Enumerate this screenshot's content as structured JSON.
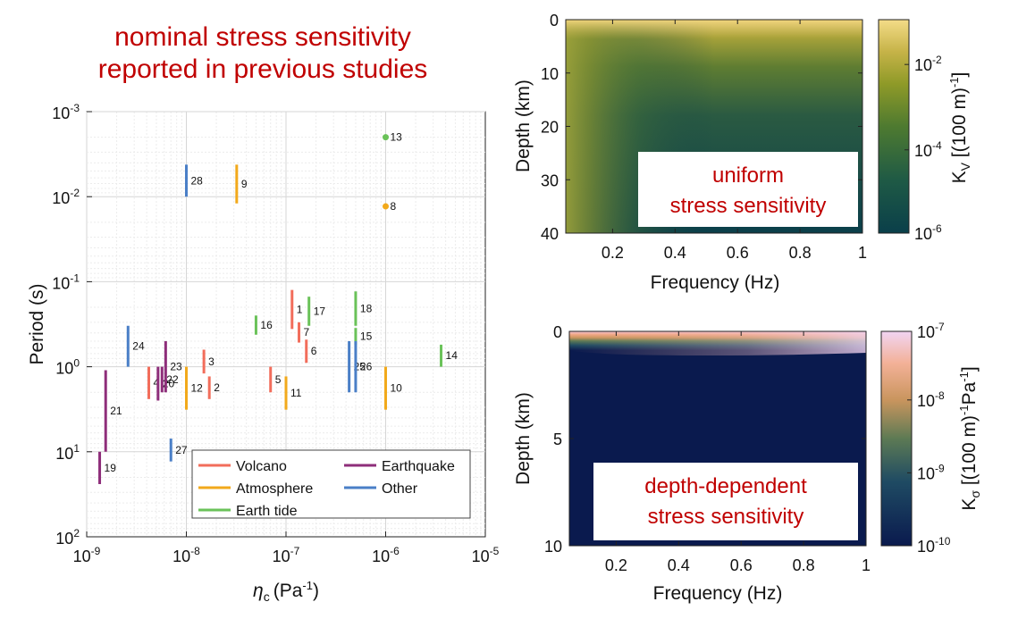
{
  "figure_title": [
    "nominal stress sensitivity",
    "reported in previous studies"
  ],
  "chart_data": [
    {
      "type": "scatter",
      "xlabel": "η_c (Pa⁻¹)",
      "xlabel_main": "η",
      "xlabel_sub": "c",
      "xlabel_unit": "(Pa",
      "xlabel_unit_exp": "-1",
      "xlabel_close": ")",
      "ylabel": "Period (s)",
      "xscale": "log",
      "yscale": "log",
      "y_reversed": true,
      "xlim": [
        1e-09,
        1e-05
      ],
      "ylim": [
        0.001,
        100
      ],
      "xticks": [
        {
          "base": "10",
          "exp": "-9"
        },
        {
          "base": "10",
          "exp": "-8"
        },
        {
          "base": "10",
          "exp": "-7"
        },
        {
          "base": "10",
          "exp": "-6"
        },
        {
          "base": "10",
          "exp": "-5"
        }
      ],
      "yticks": [
        {
          "base": "10",
          "exp": "-3"
        },
        {
          "base": "10",
          "exp": "-2"
        },
        {
          "base": "10",
          "exp": "-1"
        },
        {
          "base": "10",
          "exp": "0"
        },
        {
          "base": "10",
          "exp": "1"
        },
        {
          "base": "10",
          "exp": "2"
        }
      ],
      "grid": true,
      "legend": {
        "placement": "bottom-right",
        "entries": [
          {
            "name": "Volcano",
            "color": "#f26d5b"
          },
          {
            "name": "Earthquake",
            "color": "#8e2e7a"
          },
          {
            "name": "Atmosphere",
            "color": "#f2a91b"
          },
          {
            "name": "Other",
            "color": "#4a7fc7"
          },
          {
            "name": "Earth tide",
            "color": "#6ac259"
          }
        ]
      },
      "colors": {
        "Volcano": "#f26d5b",
        "Atmosphere": "#f2a91b",
        "Earth tide": "#6ac259",
        "Earthquake": "#8e2e7a",
        "Other": "#4a7fc7"
      },
      "segments": [
        {
          "label": "1",
          "category": "Volcano",
          "x": 1.15e-07,
          "period": [
            0.125,
            0.36
          ]
        },
        {
          "label": "2",
          "category": "Volcano",
          "x": 1.7e-08,
          "period": [
            1.3,
            2.4
          ]
        },
        {
          "label": "3",
          "category": "Volcano",
          "x": 1.5e-08,
          "period": [
            0.63,
            1.2
          ]
        },
        {
          "label": "4",
          "category": "Volcano",
          "x": 4.2e-09,
          "period": [
            1.0,
            2.4
          ]
        },
        {
          "label": "5",
          "category": "Volcano",
          "x": 7e-08,
          "period": [
            1.0,
            2.0
          ]
        },
        {
          "label": "6",
          "category": "Volcano",
          "x": 1.6e-07,
          "period": [
            0.48,
            0.9
          ]
        },
        {
          "label": "7",
          "category": "Volcano",
          "x": 1.35e-07,
          "period": [
            0.3,
            0.52
          ]
        },
        {
          "label": "8",
          "category": "Atmosphere",
          "x": 1e-06,
          "period": [
            0.013,
            0.013
          ],
          "point": true
        },
        {
          "label": "9",
          "category": "Atmosphere",
          "x": 3.2e-08,
          "period": [
            0.0042,
            0.012
          ]
        },
        {
          "label": "10",
          "category": "Atmosphere",
          "x": 1e-06,
          "period": [
            1.0,
            3.2
          ]
        },
        {
          "label": "11",
          "category": "Atmosphere",
          "x": 1e-07,
          "period": [
            1.3,
            3.2
          ]
        },
        {
          "label": "12",
          "category": "Atmosphere",
          "x": 1e-08,
          "period": [
            1.0,
            3.2
          ]
        },
        {
          "label": "13",
          "category": "Earth tide",
          "x": 1e-06,
          "period": [
            0.002,
            0.002
          ],
          "point": true
        },
        {
          "label": "14",
          "category": "Earth tide",
          "x": 3.6e-06,
          "period": [
            0.55,
            1.0
          ]
        },
        {
          "label": "15",
          "category": "Earth tide",
          "x": 5e-07,
          "period": [
            0.35,
            0.55
          ]
        },
        {
          "label": "16",
          "category": "Earth tide",
          "x": 5e-08,
          "period": [
            0.25,
            0.42
          ]
        },
        {
          "label": "17",
          "category": "Earth tide",
          "x": 1.7e-07,
          "period": [
            0.15,
            0.33
          ]
        },
        {
          "label": "18",
          "category": "Earth tide",
          "x": 5e-07,
          "period": [
            0.13,
            0.33
          ]
        },
        {
          "label": "19",
          "category": "Earthquake",
          "x": 1.35e-09,
          "period": [
            10,
            24
          ]
        },
        {
          "label": "20",
          "category": "Earthquake",
          "x": 5.2e-09,
          "period": [
            1.0,
            2.5
          ]
        },
        {
          "label": "21",
          "category": "Earthquake",
          "x": 1.55e-09,
          "period": [
            1.1,
            10
          ]
        },
        {
          "label": "22",
          "category": "Earthquake",
          "x": 5.7e-09,
          "period": [
            1.0,
            2.0
          ]
        },
        {
          "label": "23",
          "category": "Earthquake",
          "x": 6.2e-09,
          "period": [
            0.5,
            2.0
          ]
        },
        {
          "label": "24",
          "category": "Other",
          "x": 2.6e-09,
          "period": [
            0.33,
            1.0
          ]
        },
        {
          "label": "25",
          "category": "Other",
          "x": 4.3e-07,
          "period": [
            0.5,
            2.0
          ]
        },
        {
          "label": "26",
          "category": "Other",
          "x": 5e-07,
          "period": [
            0.5,
            2.0
          ]
        },
        {
          "label": "27",
          "category": "Other",
          "x": 7e-09,
          "period": [
            7,
            13
          ]
        },
        {
          "label": "28",
          "category": "Other",
          "x": 1e-08,
          "period": [
            0.0042,
            0.01
          ]
        }
      ]
    },
    {
      "type": "heatmap",
      "xlabel": "Frequency (Hz)",
      "ylabel": "Depth (km)",
      "xlim": [
        0.05,
        1
      ],
      "ylim": [
        0,
        40
      ],
      "y_reversed": true,
      "xticks": [
        "0.2",
        "0.4",
        "0.6",
        "0.8",
        "1"
      ],
      "yticks": [
        "0",
        "10",
        "20",
        "30",
        "40"
      ],
      "colorbar": {
        "label_main": "K",
        "label_sub": "V",
        "label_unit": " [(100 m)",
        "label_unit_exp": "-1",
        "label_close": "]",
        "scale": "log",
        "ticks": [
          {
            "base": "10",
            "exp": "-2"
          },
          {
            "base": "10",
            "exp": "-4"
          },
          {
            "base": "10",
            "exp": "-6"
          }
        ],
        "colormap": [
          "#0a3f4a",
          "#1f5a45",
          "#4e7a30",
          "#8f9a28",
          "#c6b348",
          "#f4dc88"
        ]
      },
      "annotation": [
        "uniform",
        "stress sensitivity"
      ]
    },
    {
      "type": "heatmap",
      "xlabel": "Frequency (Hz)",
      "ylabel": "Depth (km)",
      "xlim": [
        0.05,
        1
      ],
      "ylim": [
        0,
        10
      ],
      "y_reversed": true,
      "xticks": [
        "0.2",
        "0.4",
        "0.6",
        "0.8",
        "1"
      ],
      "yticks": [
        "0",
        "5",
        "10"
      ],
      "colorbar": {
        "label_main": "K",
        "label_sub": "σ",
        "label_unit": " [(100 m)",
        "label_unit_exp": "-1",
        "label_unit2": "Pa",
        "label_unit2_exp": "-1",
        "label_close": "]",
        "scale": "log",
        "ticks": [
          {
            "base": "10",
            "exp": "-7"
          },
          {
            "base": "10",
            "exp": "-8"
          },
          {
            "base": "10",
            "exp": "-9"
          },
          {
            "base": "10",
            "exp": "-10"
          }
        ],
        "colormap": [
          "#0a1a4e",
          "#1f4b63",
          "#5d7a54",
          "#c9955e",
          "#f3b197",
          "#f1d4f2"
        ]
      },
      "annotation": [
        "depth-dependent",
        "stress sensitivity"
      ]
    }
  ]
}
